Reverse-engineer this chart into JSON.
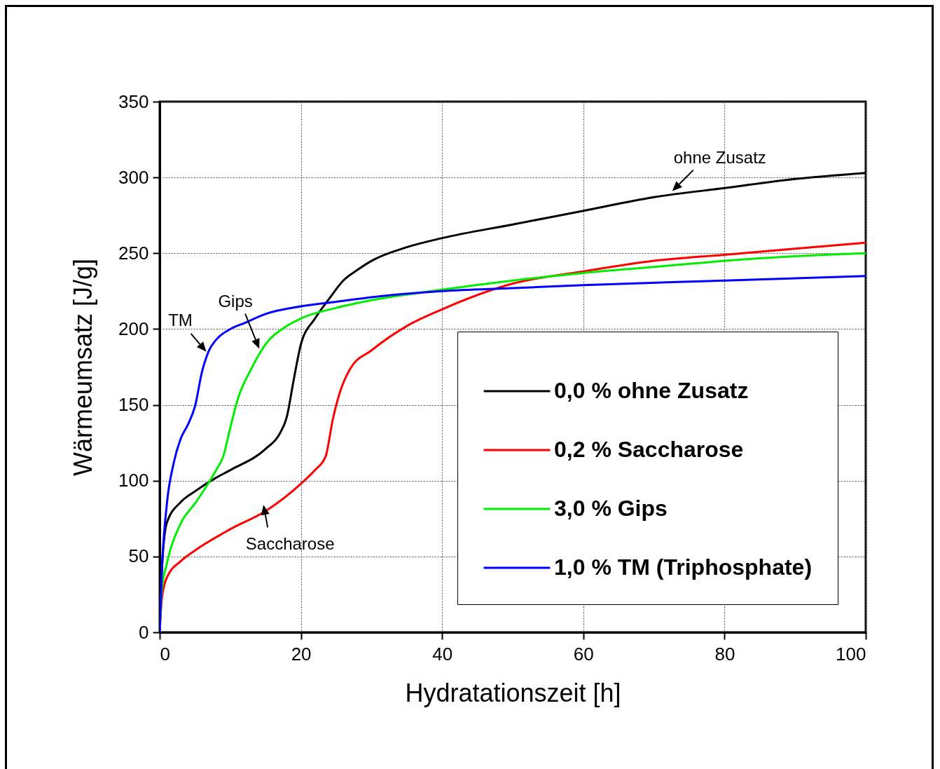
{
  "chart_data": {
    "type": "line",
    "xlabel": "Hydratationszeit [h]",
    "ylabel": "Wärmeumsatz [J/g]",
    "xlim": [
      0,
      100
    ],
    "xticks": [
      0,
      20,
      40,
      60,
      80,
      100
    ],
    "ylim": [
      0,
      350
    ],
    "yticks": [
      0,
      50,
      100,
      150,
      200,
      250,
      300,
      350
    ],
    "grid": true,
    "legend": "bottom right",
    "line_style": "solid",
    "series": [
      {
        "name": "0,0 % ohne Zusatz",
        "color": "#000000",
        "x": [
          0,
          0.3,
          1,
          3,
          5,
          8,
          10,
          15,
          17,
          18,
          19,
          20,
          22,
          24,
          26,
          28,
          30,
          35,
          40,
          50,
          60,
          70,
          80,
          90,
          100
        ],
        "values": [
          0,
          40,
          72,
          86,
          93,
          102,
          107,
          121,
          131,
          142,
          167,
          190,
          207,
          220,
          232,
          239,
          245,
          254,
          260,
          269,
          278,
          287,
          293,
          299,
          303
        ]
      },
      {
        "name": "0,2 % Saccharose",
        "color": "#ff0000",
        "x": [
          0,
          0.3,
          1,
          3,
          5,
          10,
          15,
          20,
          22,
          23.5,
          24.5,
          25.5,
          27,
          30,
          35,
          40,
          50,
          60,
          70,
          80,
          90,
          100
        ],
        "values": [
          0,
          22,
          36,
          47,
          54,
          68,
          80,
          98,
          107,
          116,
          140,
          158,
          174,
          186,
          202,
          213,
          230,
          238,
          245,
          249,
          253,
          257
        ]
      },
      {
        "name": "3,0 % Gips",
        "color": "#00ee00",
        "x": [
          0,
          0.3,
          1,
          3,
          5,
          8,
          9,
          10,
          11,
          13,
          15,
          18,
          20,
          25,
          30,
          40,
          50,
          60,
          70,
          80,
          90,
          100
        ],
        "values": [
          0,
          28,
          45,
          72,
          85,
          107,
          116,
          135,
          153,
          174,
          190,
          202,
          207,
          214,
          219,
          226,
          232,
          237,
          241,
          245,
          248,
          250
        ]
      },
      {
        "name": "1,0 % TM (Triphosphate)",
        "color": "#0000ff",
        "x": [
          0,
          0.3,
          1,
          2,
          3,
          4,
          5,
          6,
          7,
          8,
          10,
          12,
          15,
          20,
          25,
          30,
          40,
          50,
          60,
          80,
          100
        ],
        "values": [
          0,
          40,
          84,
          112,
          128,
          137,
          149,
          172,
          186,
          193,
          200,
          204,
          210,
          215,
          218,
          221,
          225,
          227,
          229,
          232,
          235
        ]
      }
    ],
    "annotations": [
      {
        "text": "ohne Zusatz",
        "x": 72.6,
        "y": 291
      },
      {
        "text": "Gips",
        "x": 14.1,
        "y": 187
      },
      {
        "text": "TM",
        "x": 6.6,
        "y": 185
      },
      {
        "text": "Saccharose",
        "x": 14.7,
        "y": 84
      }
    ]
  }
}
